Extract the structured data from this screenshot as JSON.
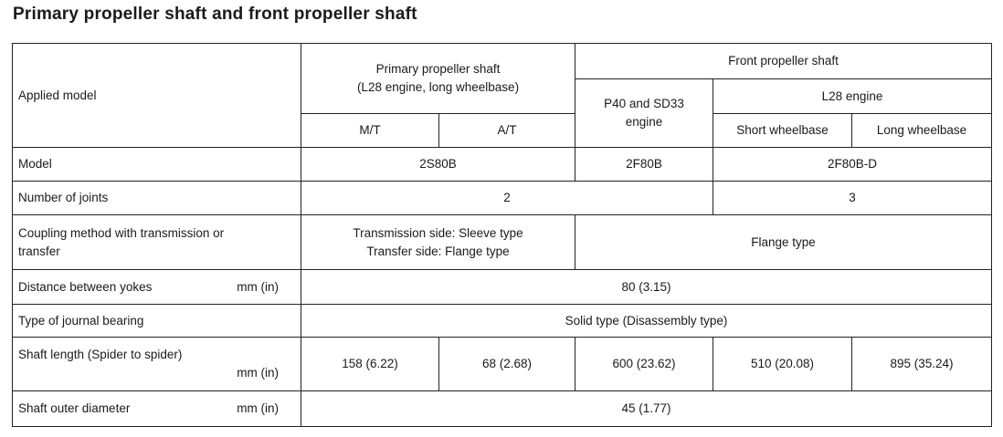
{
  "title": "Primary propeller shaft and front propeller shaft",
  "header": {
    "applied_model": "Applied model",
    "primary_line1": "Primary propeller shaft",
    "primary_line2": "(L28 engine, long wheelbase)",
    "front": "Front propeller shaft",
    "p40_line1": "P40 and SD33",
    "p40_line2": "engine",
    "l28": "L28 engine",
    "mt": "M/T",
    "at": "A/T",
    "short_wb": "Short wheelbase",
    "long_wb": "Long wheelbase"
  },
  "rows": {
    "model": {
      "label": "Model",
      "primary": "2S80B",
      "p40": "2F80B",
      "l28": "2F80B-D"
    },
    "joints": {
      "label": "Number of joints",
      "a": "2",
      "b": "3"
    },
    "coupling": {
      "label_line1": "Coupling method with transmission or",
      "label_line2": "transfer",
      "primary_line1": "Transmission side: Sleeve type",
      "primary_line2": "Transfer side: Flange type",
      "front": "Flange type"
    },
    "yokes": {
      "label": "Distance between yokes",
      "unit": "mm (in)",
      "value": "80 (3.15)"
    },
    "journal": {
      "label": "Type of journal bearing",
      "value": "Solid type (Disassembly type)"
    },
    "length": {
      "label": "Shaft length (Spider to spider)",
      "unit": "mm (in)",
      "mt": "158 (6.22)",
      "at": "68 (2.68)",
      "p40": "600 (23.62)",
      "short": "510 (20.08)",
      "long": "895 (35.24)"
    },
    "diameter": {
      "label": "Shaft outer diameter",
      "unit": "mm (in)",
      "value": "45 (1.77)"
    }
  }
}
